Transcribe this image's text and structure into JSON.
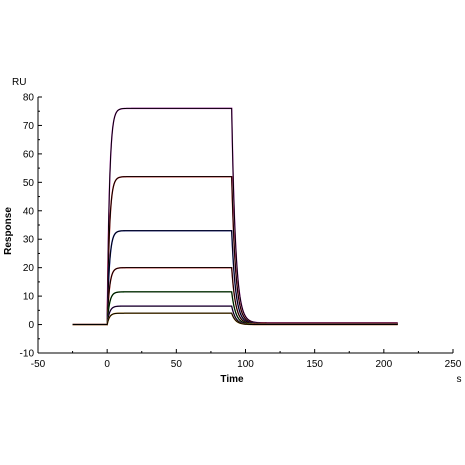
{
  "chart_data": {
    "type": "line",
    "title": "",
    "xlabel": "Time",
    "x_unit": "s",
    "ylabel": "Response",
    "y_unit": "RU",
    "xlim": [
      -50,
      250
    ],
    "ylim": [
      -10,
      80
    ],
    "x_ticks": [
      -50,
      0,
      50,
      100,
      150,
      200,
      250
    ],
    "y_ticks": [
      -10,
      0,
      10,
      20,
      30,
      40,
      50,
      60,
      70,
      80
    ],
    "grid": false,
    "legend": "none",
    "sensorgram": {
      "x_start": -25,
      "injection_start": 0,
      "injection_end": 90,
      "x_end": 210
    },
    "series": [
      {
        "plateau": 76,
        "baseline_end": 0.6,
        "color": "#cc33cc"
      },
      {
        "plateau": 52,
        "baseline_end": 0.4,
        "color": "#dd2222"
      },
      {
        "plateau": 33,
        "baseline_end": 0.3,
        "color": "#2233cc"
      },
      {
        "plateau": 20,
        "baseline_end": 0.2,
        "color": "#dd2222"
      },
      {
        "plateau": 11.5,
        "baseline_end": 0.1,
        "color": "#22aa22"
      },
      {
        "plateau": 6.5,
        "baseline_end": 0.0,
        "color": "#8833cc"
      },
      {
        "plateau": 4,
        "baseline_end": 0.0,
        "color": "#cc8800"
      }
    ]
  }
}
